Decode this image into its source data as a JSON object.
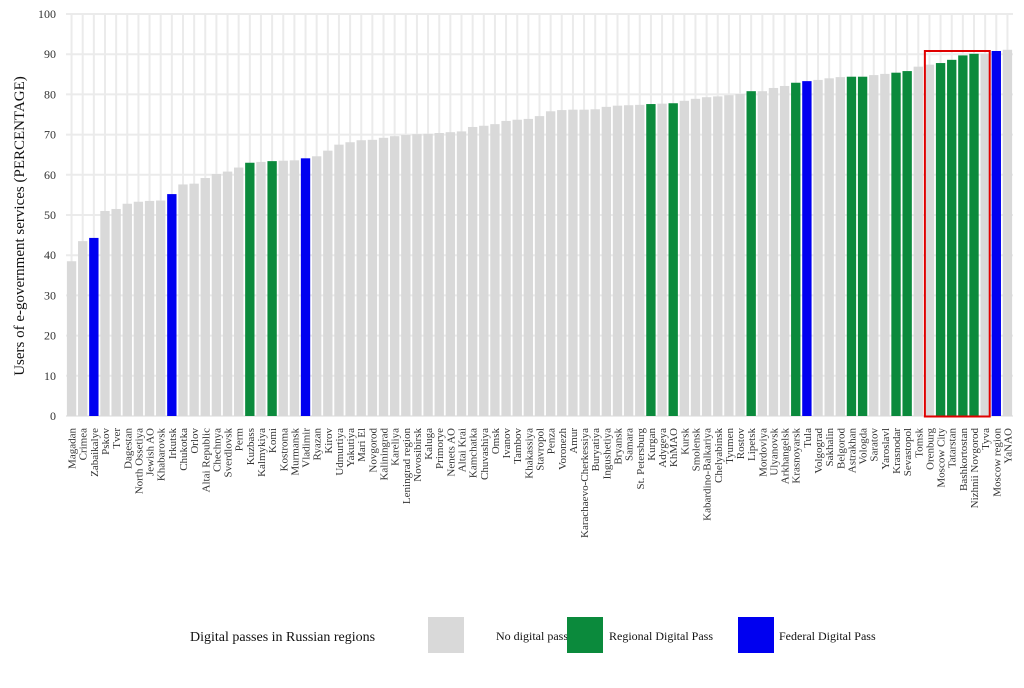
{
  "chart_data": {
    "type": "bar",
    "ylabel": "Users of e-government services (PERCENTAGE)",
    "xlabel": "",
    "ylim": [
      0,
      100
    ],
    "yticks": [
      0,
      10,
      20,
      30,
      40,
      50,
      60,
      70,
      80,
      90,
      100
    ],
    "grid": true,
    "colors": {
      "none": "#d9d9d9",
      "regional": "#0b8a3c",
      "federal": "#0000f0",
      "highlight": "#e00000"
    },
    "legend": {
      "title": "Digital passes in Russian regions",
      "position": "bottom",
      "items": [
        {
          "key": "none",
          "label": "No digital pass"
        },
        {
          "key": "regional",
          "label": "Regional Digital Pass"
        },
        {
          "key": "federal",
          "label": "Federal Digital Pass"
        }
      ]
    },
    "highlight_categories": [
      "Orenburg",
      "Tyva"
    ],
    "categories": [
      "Magadan",
      "Crimea",
      "Zabaikalye",
      "Pskov",
      "Tver",
      "Dagestan",
      "North Ossetiya",
      "Jewish AO",
      "Khabarovsk",
      "Irkutsk",
      "Chukotka",
      "Orlov",
      "Altai Republic",
      "Chechnya",
      "Sverdlovsk",
      "Perm",
      "Kuzbass",
      "Kalmykiya",
      "Komi",
      "Kostroma",
      "Murmansk",
      "Vladimir",
      "Ryazan",
      "Kirov",
      "Udmurtiya",
      "Yakutiya",
      "Mari El",
      "Novgorod",
      "Kaliningrad",
      "Kareliya",
      "Leningrad region",
      "Novosibirsk",
      "Kaluga",
      "Primorye",
      "Nenets AO",
      "Altai Krai",
      "Kamchatka",
      "Chuvashiya",
      "Omsk",
      "Ivanov",
      "Tambov",
      "Khakassiya",
      "Stavropol",
      "Penza",
      "Voronezh",
      "Amur",
      "Karachaevo-Cherkessiya",
      "Buryatiya",
      "Ingushetiya",
      "Bryansk",
      "Samara",
      "St. Petersburg",
      "Kurgan",
      "Adygeya",
      "KhMAO",
      "Kursk",
      "Smolensk",
      "Kabardino-Balkariya",
      "Chelyabinsk",
      "Tyumen",
      "Rostov",
      "Lipetsk",
      "Mordoviya",
      "Ulyanovsk",
      "Arkhangelsk",
      "Krasnoyarsk",
      "Tula",
      "Volgograd",
      "Sakhalin",
      "Belgorod",
      "Astrakhan",
      "Vologda",
      "Saratov",
      "Yaroslavl",
      "Krasnodar",
      "Sevastopol",
      "Tomsk",
      "Orenburg",
      "Moscow City",
      "Tatarstan",
      "Bashkortostan",
      "Nizhnii Novgorod",
      "Tyva",
      "Moscow region",
      "YaNAO"
    ],
    "values": [
      38.5,
      43.5,
      44.3,
      51,
      51.5,
      52.8,
      53.3,
      53.5,
      53.6,
      55.2,
      57.6,
      57.8,
      59.2,
      60.2,
      60.8,
      61.8,
      63,
      63.2,
      63.4,
      63.5,
      63.6,
      64.1,
      64.6,
      66,
      67.5,
      68.1,
      68.6,
      68.7,
      69.2,
      69.6,
      69.9,
      70.1,
      70.2,
      70.4,
      70.6,
      70.8,
      71.9,
      72.2,
      72.6,
      73.4,
      73.7,
      73.9,
      74.6,
      75.8,
      76.1,
      76.2,
      76.2,
      76.3,
      76.9,
      77.2,
      77.3,
      77.4,
      77.6,
      77.7,
      77.8,
      78.4,
      78.9,
      79.3,
      79.5,
      79.8,
      80.1,
      80.8,
      80.8,
      81.6,
      82.1,
      82.9,
      83.3,
      83.6,
      84,
      84.3,
      84.4,
      84.4,
      84.8,
      85.1,
      85.4,
      85.8,
      86.9,
      87.4,
      87.8,
      88.6,
      89.7,
      90.1,
      90.1,
      90.8,
      91.1
    ],
    "groups": [
      "none",
      "none",
      "federal",
      "none",
      "none",
      "none",
      "none",
      "none",
      "none",
      "federal",
      "none",
      "none",
      "none",
      "none",
      "none",
      "none",
      "regional",
      "none",
      "regional",
      "none",
      "none",
      "federal",
      "none",
      "none",
      "none",
      "none",
      "none",
      "none",
      "none",
      "none",
      "none",
      "none",
      "none",
      "none",
      "none",
      "none",
      "none",
      "none",
      "none",
      "none",
      "none",
      "none",
      "none",
      "none",
      "none",
      "none",
      "none",
      "none",
      "none",
      "none",
      "none",
      "none",
      "regional",
      "none",
      "regional",
      "none",
      "none",
      "none",
      "none",
      "none",
      "none",
      "regional",
      "none",
      "none",
      "none",
      "regional",
      "federal",
      "none",
      "none",
      "none",
      "regional",
      "regional",
      "none",
      "none",
      "regional",
      "regional",
      "none",
      "none",
      "regional",
      "regional",
      "regional",
      "regional",
      "none",
      "federal",
      "none"
    ]
  }
}
